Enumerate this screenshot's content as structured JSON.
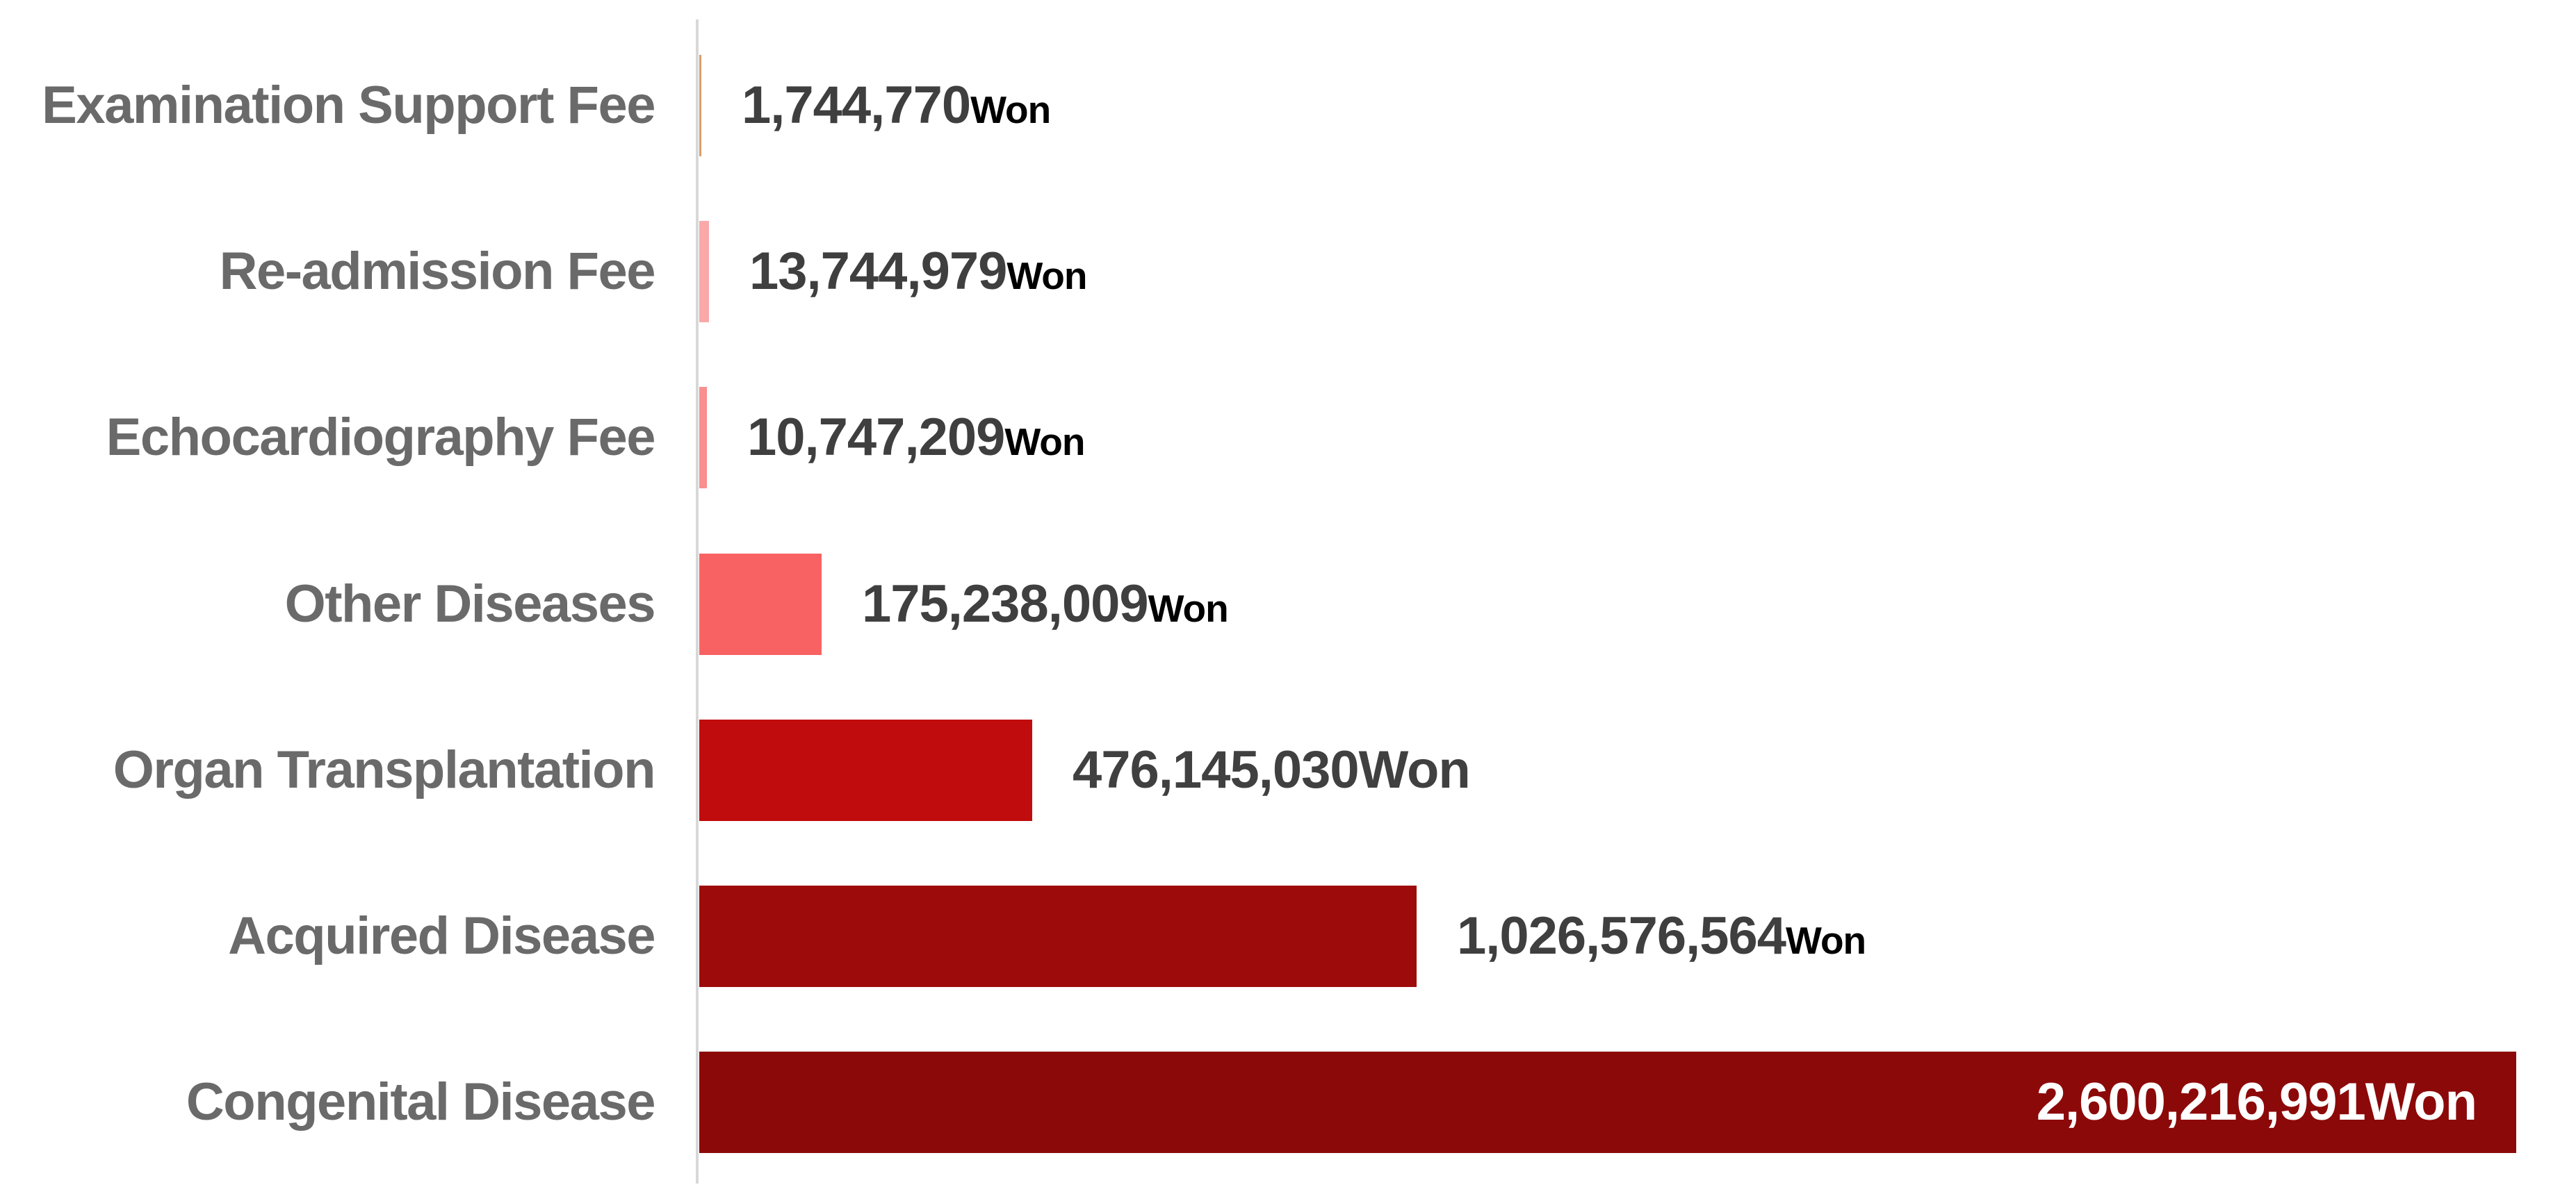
{
  "page": {
    "background": "#FFFFFF"
  },
  "chart_data": {
    "type": "bar",
    "orientation": "horizontal",
    "title": "",
    "xlabel": "",
    "ylabel": "",
    "unit": "Won",
    "xlim": [
      0,
      2600216991
    ],
    "grid": false,
    "legend": false,
    "axis_color": "#D8D8D8",
    "label_color": "#6A6A6A",
    "categories": [
      "Examination Support Fee",
      "Re-admission Fee",
      "Echocardiography Fee",
      "Other Diseases",
      "Organ Transplantation",
      "Acquired Disease",
      "Congenital Disease"
    ],
    "values": [
      1744770,
      13744979,
      10747209,
      175238009,
      476145030,
      1026576564,
      2600216991
    ],
    "items": [
      {
        "label": "Examination Support Fee",
        "value": 1744770,
        "value_text": "1,744,770",
        "unit": "Won",
        "unit_small": true,
        "bar_color": "#D99E6C",
        "value_inside": false,
        "value_color": "#3F3F3F",
        "unit_color": "#000000"
      },
      {
        "label": "Re-admission Fee",
        "value": 13744979,
        "value_text": "13,744,979",
        "unit": "Won",
        "unit_small": true,
        "bar_color": "#FAA9A9",
        "value_inside": false,
        "value_color": "#3F3F3F",
        "unit_color": "#000000"
      },
      {
        "label": "Echocardiography Fee",
        "value": 10747209,
        "value_text": "10,747,209",
        "unit": "Won",
        "unit_small": true,
        "bar_color": "#F98F8F",
        "value_inside": false,
        "value_color": "#3F3F3F",
        "unit_color": "#000000"
      },
      {
        "label": "Other Diseases",
        "value": 175238009,
        "value_text": "175,238,009",
        "unit": "Won",
        "unit_small": true,
        "bar_color": "#F96262",
        "value_inside": false,
        "value_color": "#3F3F3F",
        "unit_color": "#000000"
      },
      {
        "label": "Organ Transplantation",
        "value": 476145030,
        "value_text": "476,145,030",
        "unit": "Won",
        "unit_small": false,
        "bar_color": "#C00C0C",
        "value_inside": false,
        "value_color": "#404040",
        "unit_color": "#404040"
      },
      {
        "label": "Acquired Disease",
        "value": 1026576564,
        "value_text": "1,026,576,564",
        "unit": "Won",
        "unit_small": true,
        "bar_color": "#9E0B0B",
        "value_inside": false,
        "value_color": "#3F3F3F",
        "unit_color": "#000000"
      },
      {
        "label": "Congenital Disease",
        "value": 2600216991,
        "value_text": "2,600,216,991",
        "unit": "Won",
        "unit_small": false,
        "bar_color": "#8C0909",
        "value_inside": true,
        "value_color": "#FFFFFF",
        "unit_color": "#FFFFFF"
      }
    ]
  }
}
